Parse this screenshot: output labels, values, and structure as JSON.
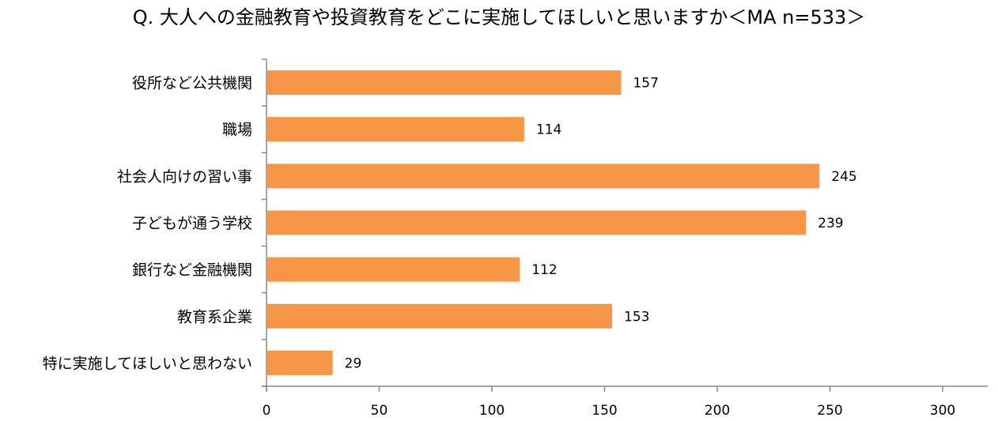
{
  "chart_data": {
    "type": "bar",
    "orientation": "horizontal",
    "title": "Q. 大人への金融教育や投資教育をどこに実施してほしいと思いますか＜MA n=533＞",
    "categories": [
      "役所など公共機関",
      "職場",
      "社会人向けの習い事",
      "子どもが通う学校",
      "銀行など金融機関",
      "教育系企業",
      "特に実施してほしいと思わない"
    ],
    "values": [
      157,
      114,
      245,
      239,
      112,
      153,
      29
    ],
    "xlim": [
      0,
      300
    ],
    "xticks": [
      0,
      50,
      100,
      150,
      200,
      250,
      300
    ],
    "xlabel": "",
    "ylabel": "",
    "grid": false,
    "legend": "none",
    "bar_color": "#F79646"
  }
}
